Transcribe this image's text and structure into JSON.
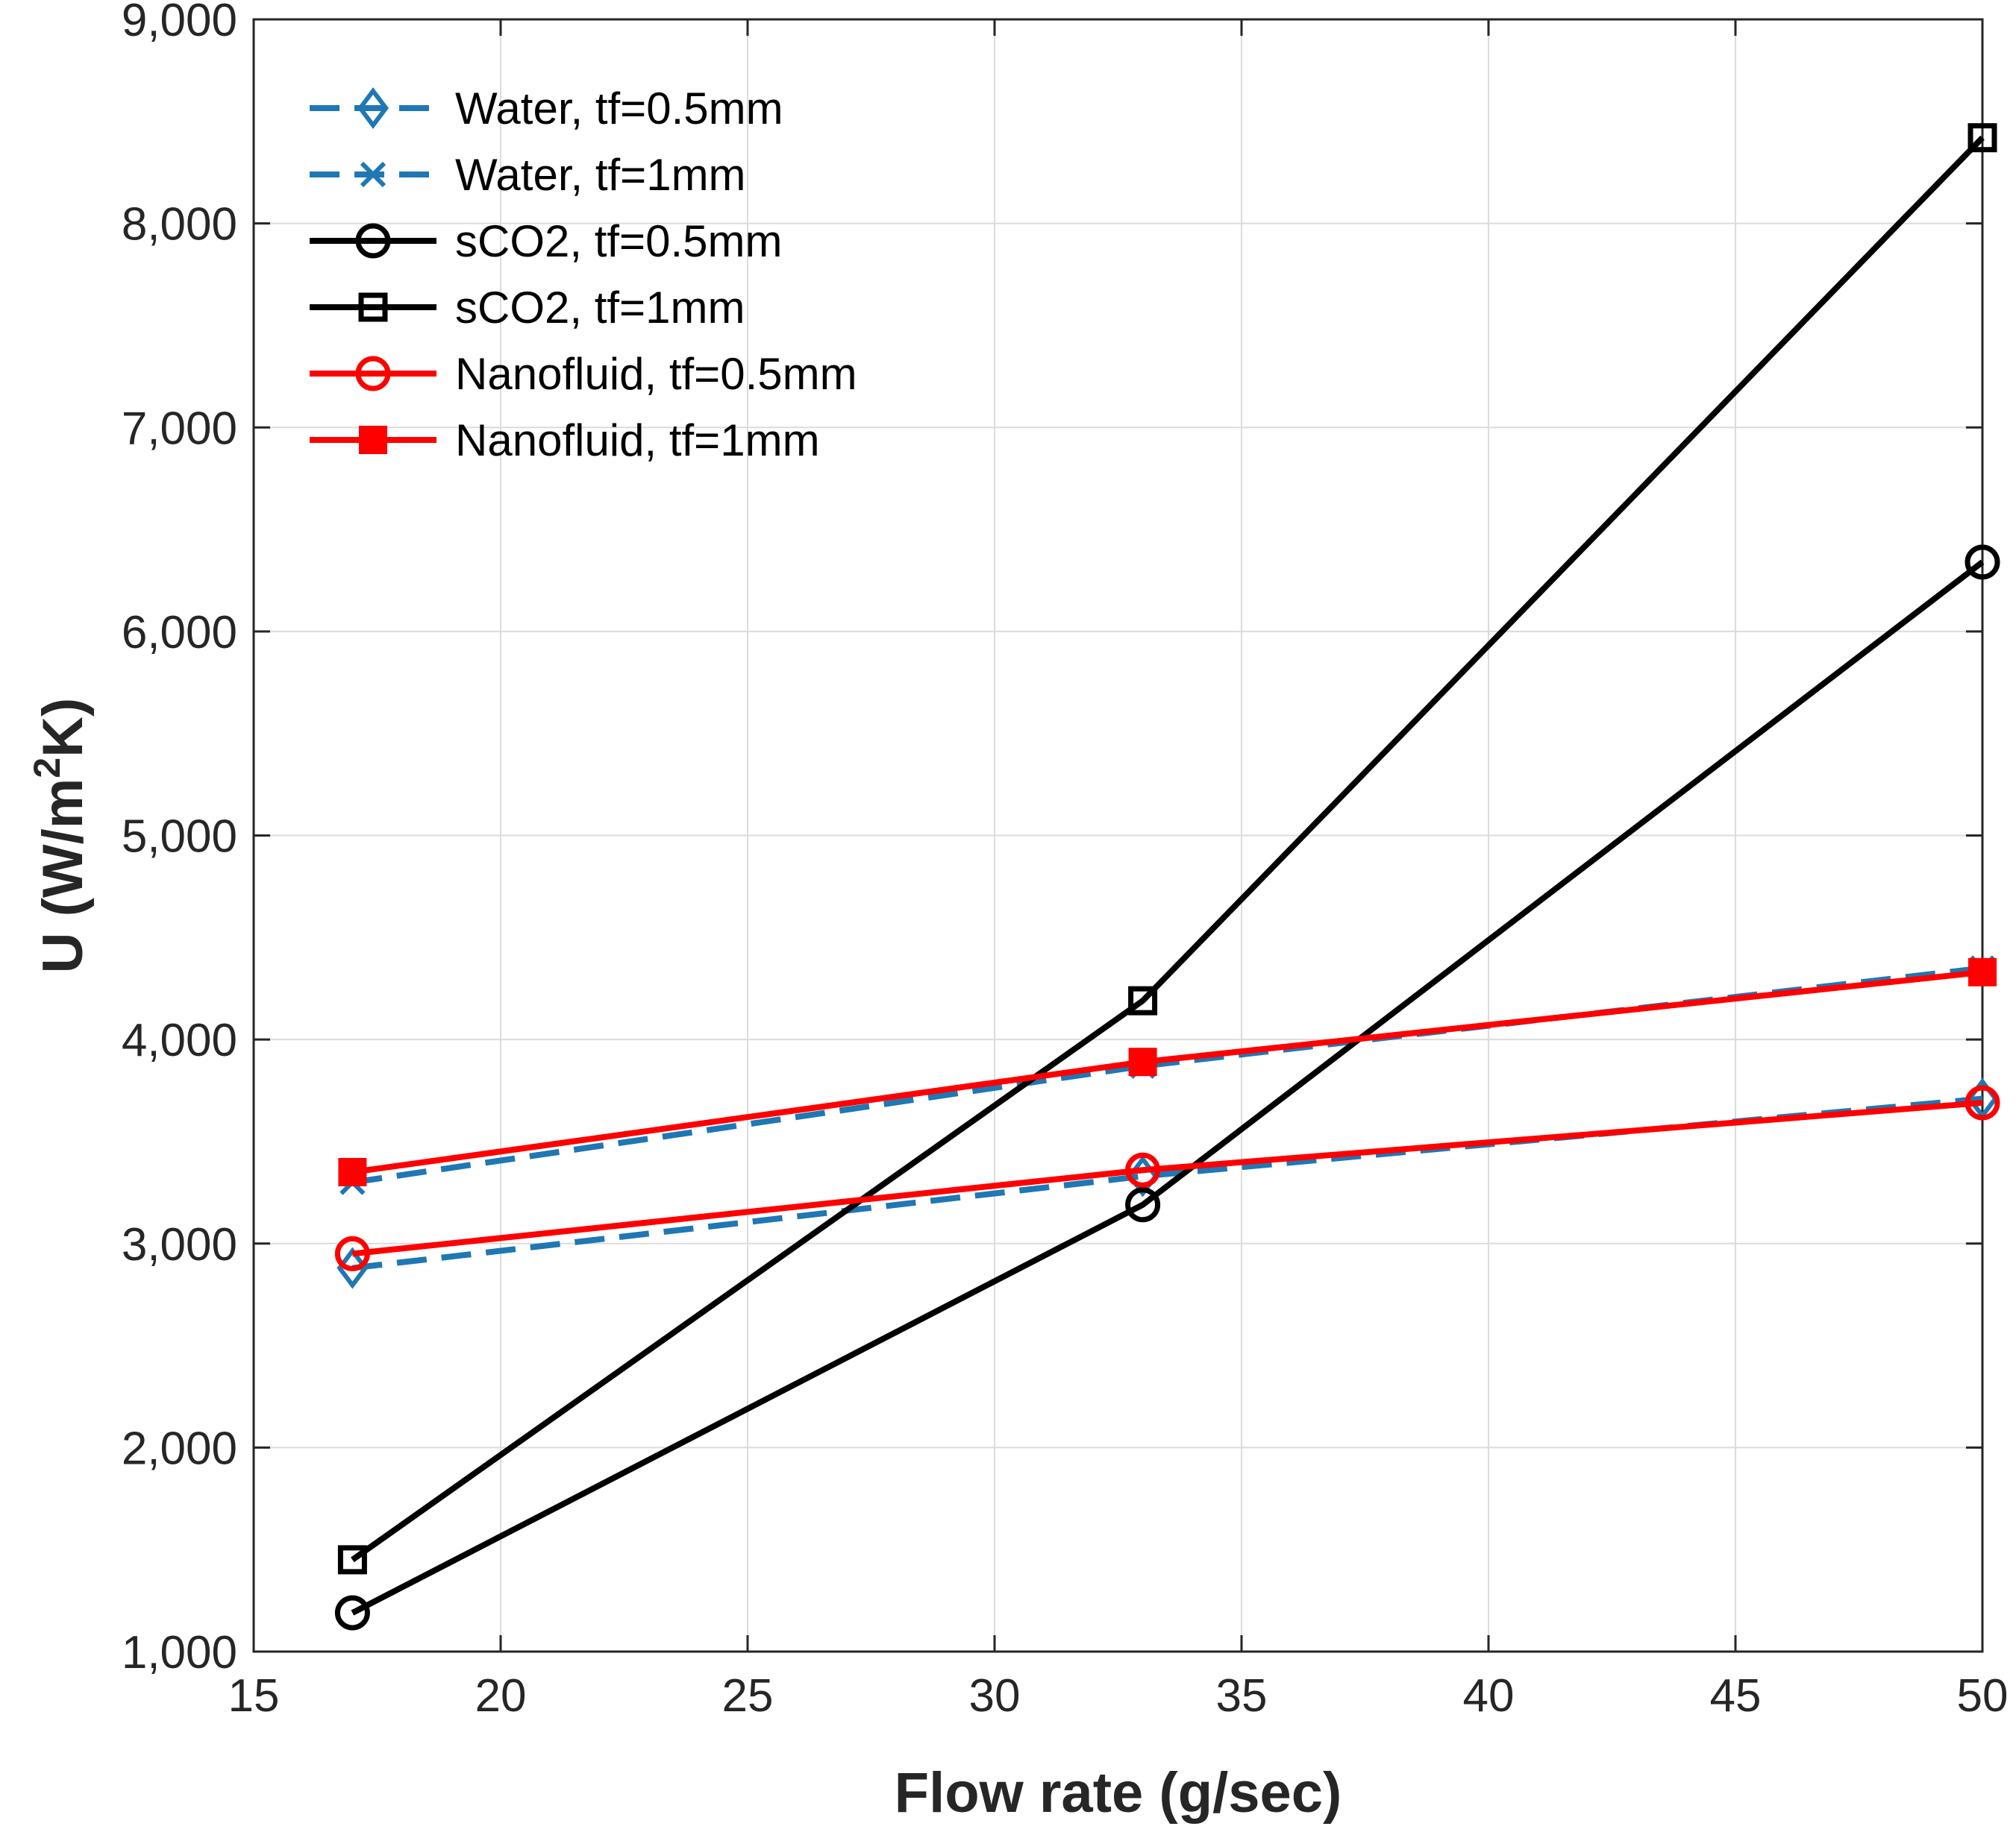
{
  "chart_data": {
    "type": "line",
    "title": "",
    "xlabel": "Flow rate (g/sec)",
    "ylabel": {
      "prefix": "U (W/m",
      "superscript": "2",
      "suffix": "K)"
    },
    "xlim": [
      15,
      50
    ],
    "ylim": [
      1000,
      9000
    ],
    "xticks": [
      15,
      20,
      25,
      30,
      35,
      40,
      45,
      50
    ],
    "xtick_labels": [
      "15",
      "20",
      "25",
      "30",
      "35",
      "40",
      "45",
      "50"
    ],
    "yticks": [
      1000,
      2000,
      3000,
      4000,
      5000,
      6000,
      7000,
      8000,
      9000
    ],
    "ytick_labels": [
      "1,000",
      "2,000",
      "3,000",
      "4,000",
      "5,000",
      "6,000",
      "7,000",
      "8,000",
      "9,000"
    ],
    "grid": true,
    "legend_position": "top-left",
    "x": [
      17,
      33,
      50
    ],
    "series": [
      {
        "name": "Water, tf=0.5mm",
        "values": [
          2880,
          3330,
          3710
        ],
        "color": "#1f77b4",
        "dash": "dashed",
        "marker": "diamond"
      },
      {
        "name": "Water, tf=1mm",
        "values": [
          3300,
          3870,
          4350
        ],
        "color": "#1f77b4",
        "dash": "dashed",
        "marker": "x"
      },
      {
        "name": "sCO2, tf=0.5mm",
        "values": [
          1190,
          3190,
          6340
        ],
        "color": "#000000",
        "dash": "solid",
        "marker": "circle"
      },
      {
        "name": "sCO2, tf=1mm",
        "values": [
          1450,
          4190,
          8420
        ],
        "color": "#000000",
        "dash": "solid",
        "marker": "square"
      },
      {
        "name": "Nanofluid, tf=0.5mm",
        "values": [
          2950,
          3360,
          3690
        ],
        "color": "#ff0000",
        "dash": "solid",
        "marker": "circle"
      },
      {
        "name": "Nanofluid, tf=1mm",
        "values": [
          3350,
          3890,
          4330
        ],
        "color": "#ff0000",
        "dash": "solid",
        "marker": "filled-square"
      }
    ]
  }
}
